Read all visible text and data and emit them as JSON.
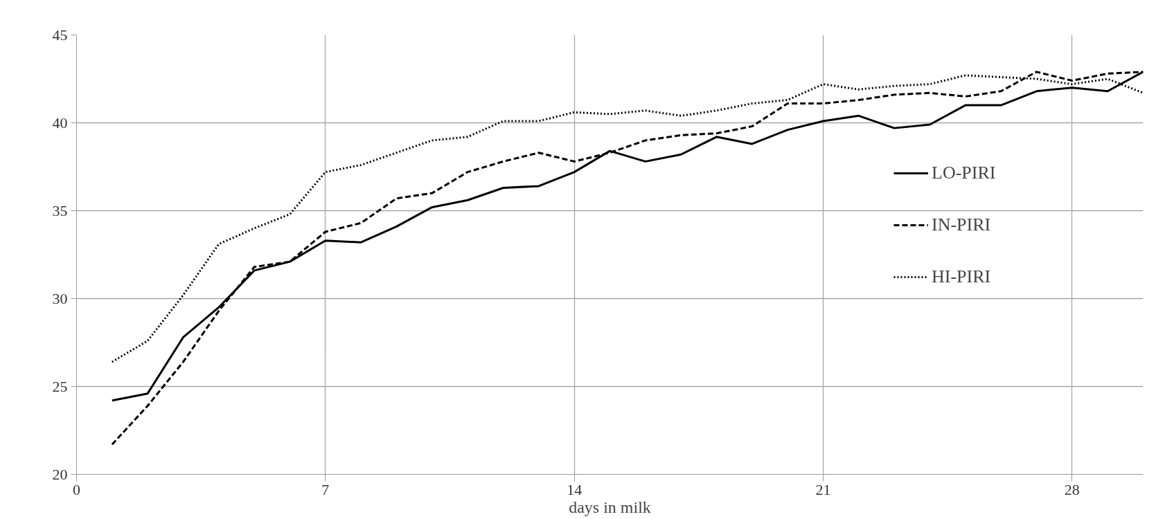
{
  "chart_data": {
    "type": "line",
    "xlabel": "days in milk",
    "x": [
      1,
      2,
      3,
      4,
      5,
      6,
      7,
      8,
      9,
      10,
      11,
      12,
      13,
      14,
      15,
      16,
      17,
      18,
      19,
      20,
      21,
      22,
      23,
      24,
      25,
      26,
      27,
      28,
      29,
      30
    ],
    "xlim": [
      0,
      30
    ],
    "xticks": [
      0,
      7,
      14,
      21,
      28
    ],
    "ylim": [
      20,
      45
    ],
    "yticks": [
      20,
      25,
      30,
      35,
      40,
      45
    ],
    "grid": true,
    "legend": "right",
    "marker": "none",
    "series": [
      {
        "name": "LO-PIRI",
        "color": "#000000",
        "line_style": "solid",
        "values": [
          24.2,
          24.6,
          27.8,
          29.5,
          31.6,
          32.1,
          33.3,
          33.2,
          34.1,
          35.2,
          35.6,
          36.3,
          36.4,
          37.2,
          38.4,
          37.8,
          38.2,
          39.2,
          38.8,
          39.6,
          40.1,
          40.4,
          39.7,
          39.9,
          41.0,
          41.0,
          41.8,
          42.0,
          41.8,
          42.9
        ]
      },
      {
        "name": "IN-PIRI",
        "color": "#000000",
        "line_style": "dashed",
        "values": [
          21.7,
          23.9,
          26.4,
          29.3,
          31.8,
          32.1,
          33.8,
          34.3,
          35.7,
          36.0,
          37.2,
          37.8,
          38.3,
          37.8,
          38.3,
          39.0,
          39.3,
          39.4,
          39.8,
          41.1,
          41.1,
          41.3,
          41.6,
          41.7,
          41.5,
          41.8,
          42.9,
          42.4,
          42.8,
          42.9
        ]
      },
      {
        "name": "HI-PIRI",
        "color": "#000000",
        "line_style": "dotted",
        "values": [
          26.4,
          27.6,
          30.2,
          33.1,
          34.0,
          34.8,
          37.2,
          37.6,
          38.3,
          39.0,
          39.2,
          40.1,
          40.1,
          40.6,
          40.5,
          40.7,
          40.4,
          40.7,
          41.1,
          41.3,
          42.2,
          41.9,
          42.1,
          42.2,
          42.7,
          42.6,
          42.5,
          42.2,
          42.5,
          41.7
        ]
      }
    ]
  }
}
